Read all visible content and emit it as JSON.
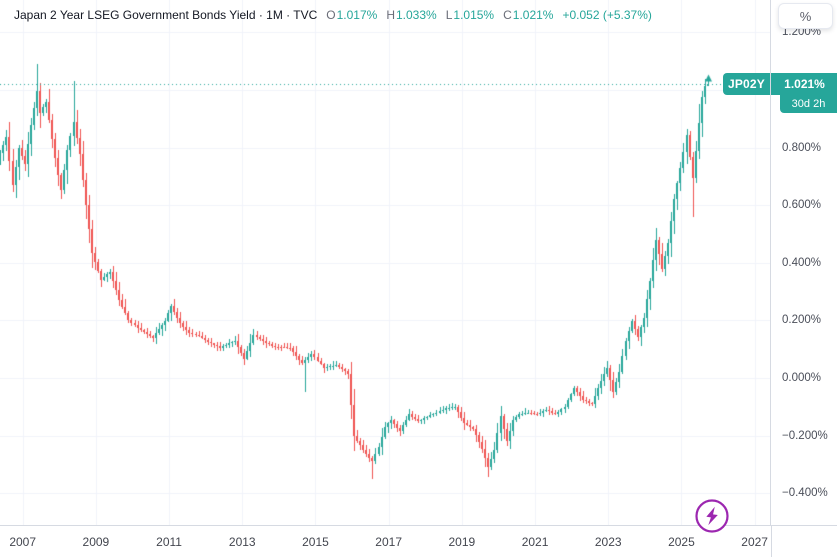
{
  "header": {
    "title": "Japan 2 Year LSEG Government Bonds Yield · 1M · TVC",
    "ohlc": {
      "o_label": "O",
      "o": "1.017%",
      "h_label": "H",
      "h": "1.033%",
      "l_label": "L",
      "l": "1.015%",
      "c_label": "C",
      "c": "1.021%"
    },
    "change": "+0.052 (+5.37%)"
  },
  "price_scale": {
    "unit_button": "%",
    "ticks": [
      {
        "value": 1.2,
        "label": "1.200%"
      },
      {
        "value": 0.8,
        "label": "0.800%"
      },
      {
        "value": 0.6,
        "label": "0.600%"
      },
      {
        "value": 0.4,
        "label": "0.400%"
      },
      {
        "value": 0.2,
        "label": "0.200%"
      },
      {
        "value": 0.0,
        "label": "0.000%"
      },
      {
        "value": -0.2,
        "label": "−0.200%"
      },
      {
        "value": -0.4,
        "label": "−0.400%"
      }
    ],
    "flag": {
      "symbol": "JP02Y",
      "price": "1.021%",
      "countdown": "30d 2h"
    }
  },
  "time_scale": {
    "ticks": [
      {
        "year": 2007,
        "label": "2007"
      },
      {
        "year": 2009,
        "label": "2009"
      },
      {
        "year": 2011,
        "label": "2011"
      },
      {
        "year": 2013,
        "label": "2013"
      },
      {
        "year": 2015,
        "label": "2015"
      },
      {
        "year": 2017,
        "label": "2017"
      },
      {
        "year": 2019,
        "label": "2019"
      },
      {
        "year": 2021,
        "label": "2021"
      },
      {
        "year": 2023,
        "label": "2023"
      },
      {
        "year": 2025,
        "label": "2025"
      },
      {
        "year": 2027,
        "label": "2027"
      }
    ]
  },
  "icons": {
    "market_events": "lightning"
  },
  "chart_data": {
    "type": "candlestick",
    "title": "Japan 2 Year LSEG Government Bonds Yield",
    "symbol": "JP02Y",
    "timeframe": "1M",
    "source": "TVC",
    "last_candle": {
      "open": 1.017,
      "high": 1.033,
      "low": 1.015,
      "close": 1.021,
      "change": 0.052,
      "change_pct": 5.37
    },
    "price_line_value": 1.021,
    "xlim": [
      2006.38,
      2027.42
    ],
    "ylim": [
      -0.5104,
      1.3125
    ],
    "grid": true,
    "grid_years": [
      2007,
      2009,
      2011,
      2013,
      2015,
      2017,
      2019,
      2021,
      2023,
      2025,
      2027
    ],
    "grid_values": [
      1.2,
      1.0,
      0.8,
      0.6,
      0.4,
      0.2,
      0.0,
      -0.2,
      -0.4
    ],
    "start": 2006.4167,
    "candle_count": 233,
    "close_anchors": [
      [
        2006.42,
        0.78
      ],
      [
        2006.58,
        0.84
      ],
      [
        2006.75,
        0.67
      ],
      [
        2006.92,
        0.8
      ],
      [
        2007.08,
        0.74
      ],
      [
        2007.25,
        0.88
      ],
      [
        2007.42,
        1.0
      ],
      [
        2007.5,
        0.92
      ],
      [
        2007.67,
        0.96
      ],
      [
        2007.92,
        0.76
      ],
      [
        2008.08,
        0.65
      ],
      [
        2008.25,
        0.79
      ],
      [
        2008.42,
        0.89
      ],
      [
        2008.58,
        0.78
      ],
      [
        2008.75,
        0.6
      ],
      [
        2008.92,
        0.43
      ],
      [
        2009.17,
        0.34
      ],
      [
        2009.42,
        0.37
      ],
      [
        2009.67,
        0.27
      ],
      [
        2009.92,
        0.2
      ],
      [
        2010.25,
        0.165
      ],
      [
        2010.58,
        0.14
      ],
      [
        2010.92,
        0.2
      ],
      [
        2011.08,
        0.25
      ],
      [
        2011.33,
        0.19
      ],
      [
        2011.58,
        0.155
      ],
      [
        2011.83,
        0.145
      ],
      [
        2012.08,
        0.125
      ],
      [
        2012.42,
        0.105
      ],
      [
        2012.83,
        0.13
      ],
      [
        2013.08,
        0.065
      ],
      [
        2013.33,
        0.15
      ],
      [
        2013.83,
        0.11
      ],
      [
        2014.33,
        0.105
      ],
      [
        2014.67,
        0.05
      ],
      [
        2014.92,
        0.085
      ],
      [
        2015.25,
        0.035
      ],
      [
        2015.58,
        0.045
      ],
      [
        2015.92,
        0.015
      ],
      [
        2016.08,
        -0.2
      ],
      [
        2016.33,
        -0.25
      ],
      [
        2016.58,
        -0.29
      ],
      [
        2016.75,
        -0.24
      ],
      [
        2016.92,
        -0.17
      ],
      [
        2017.08,
        -0.145
      ],
      [
        2017.33,
        -0.185
      ],
      [
        2017.58,
        -0.125
      ],
      [
        2017.83,
        -0.15
      ],
      [
        2018.08,
        -0.135
      ],
      [
        2018.33,
        -0.12
      ],
      [
        2018.58,
        -0.105
      ],
      [
        2018.83,
        -0.1
      ],
      [
        2019.08,
        -0.155
      ],
      [
        2019.33,
        -0.175
      ],
      [
        2019.58,
        -0.245
      ],
      [
        2019.75,
        -0.31
      ],
      [
        2019.92,
        -0.25
      ],
      [
        2020.08,
        -0.13
      ],
      [
        2020.25,
        -0.22
      ],
      [
        2020.42,
        -0.145
      ],
      [
        2020.58,
        -0.125
      ],
      [
        2020.83,
        -0.12
      ],
      [
        2021.08,
        -0.125
      ],
      [
        2021.33,
        -0.11
      ],
      [
        2021.58,
        -0.125
      ],
      [
        2021.83,
        -0.1
      ],
      [
        2022.08,
        -0.035
      ],
      [
        2022.33,
        -0.075
      ],
      [
        2022.58,
        -0.09
      ],
      [
        2022.83,
        -0.01
      ],
      [
        2023.0,
        0.035
      ],
      [
        2023.17,
        -0.05
      ],
      [
        2023.33,
        0.02
      ],
      [
        2023.5,
        0.13
      ],
      [
        2023.67,
        0.2
      ],
      [
        2023.83,
        0.14
      ],
      [
        2024.0,
        0.21
      ],
      [
        2024.17,
        0.34
      ],
      [
        2024.33,
        0.48
      ],
      [
        2024.5,
        0.38
      ],
      [
        2024.67,
        0.47
      ],
      [
        2024.83,
        0.62
      ],
      [
        2025.0,
        0.73
      ],
      [
        2025.17,
        0.845
      ],
      [
        2025.33,
        0.69
      ],
      [
        2025.5,
        0.885
      ],
      [
        2025.58,
        0.975
      ],
      [
        2025.67,
        1.017
      ],
      [
        2025.75,
        1.021
      ]
    ],
    "wick_overrides": [
      {
        "t": 2007.42,
        "hi": 1.09
      },
      {
        "t": 2008.42,
        "hi": 1.03
      },
      {
        "t": 2014.75,
        "lo": -0.05
      },
      {
        "t": 2016.58,
        "lo": -0.35
      },
      {
        "t": 2019.75,
        "lo": -0.345
      },
      {
        "t": 2023.17,
        "lo": -0.07
      },
      {
        "t": 2025.33,
        "lo": 0.56
      },
      {
        "t": 2025.75,
        "hi": 1.033,
        "lo": 1.015
      }
    ],
    "colors": {
      "up": "#26a69a",
      "down": "#ef5350",
      "grid": "#f0f3fa",
      "price_line": "#26a69a",
      "flag_bg": "#26a69a",
      "events_icon": "#9c27b0"
    }
  }
}
